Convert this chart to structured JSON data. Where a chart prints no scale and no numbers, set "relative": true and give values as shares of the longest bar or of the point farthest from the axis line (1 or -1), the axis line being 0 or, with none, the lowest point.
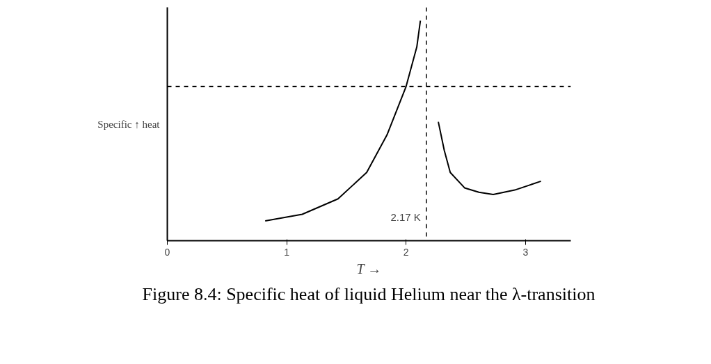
{
  "chart_data": {
    "type": "line",
    "relative": true,
    "xlabel": "T →",
    "ylabel": "Specific ↑ heat",
    "x": [
      0.82,
      1.13,
      1.43,
      1.67,
      1.84,
      2.0,
      2.09,
      2.12,
      null,
      2.27,
      2.32,
      2.37,
      2.49,
      2.61,
      2.73,
      2.91,
      3.13
    ],
    "series": [
      {
        "color": "#000000",
        "values": [
          0.09,
          0.12,
          0.19,
          0.31,
          0.48,
          0.7,
          0.88,
          1.0,
          null,
          0.54,
          0.41,
          0.31,
          0.24,
          0.22,
          0.21,
          0.23,
          0.27
        ]
      }
    ],
    "xlim": [
      0,
      3.38
    ],
    "xticks": [
      0,
      1,
      2,
      3
    ],
    "grid": false,
    "marker": "none",
    "line_style": "solid",
    "ref_lines": [
      {
        "axis": "x",
        "value": 2.17,
        "label": "2.17 K",
        "line_style": "dashed",
        "color": "#000000"
      },
      {
        "axis": "y",
        "value": 0.7,
        "label": null,
        "line_style": "dashed",
        "color": "#000000"
      }
    ],
    "annotations": [
      "Figure 8.4: Specific heat of liquid Helium near the λ-transition"
    ]
  }
}
